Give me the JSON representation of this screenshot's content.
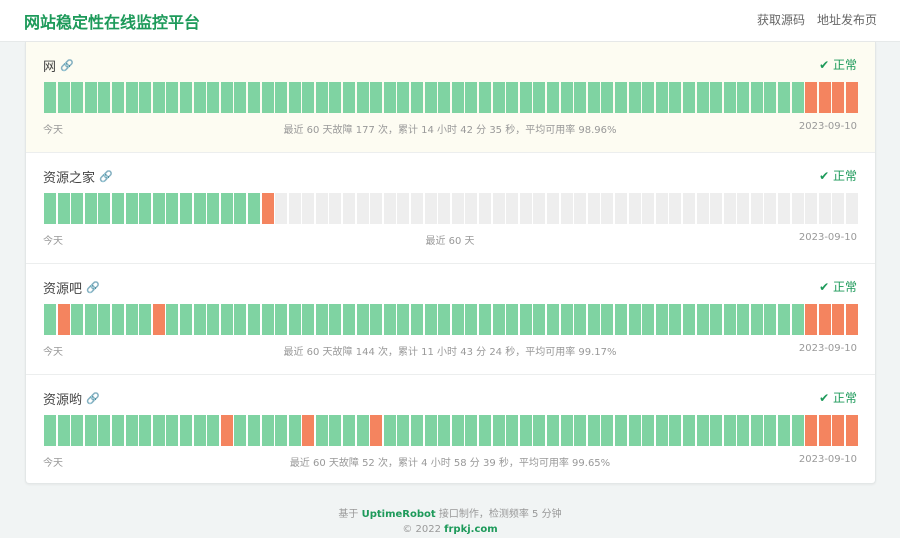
{
  "header": {
    "title": "网站稳定性在线监控平台",
    "nav": [
      "获取源码",
      "地址发布页"
    ]
  },
  "colors": {
    "up": "#7fd3a2",
    "down": "#f4845f",
    "none": "#eeeeee",
    "accent": "#1d9a5a"
  },
  "sites": [
    {
      "name": "网",
      "status": "✔ 正常",
      "today": "今天",
      "stats": "最近 60 天故障 177 次，累计 14 小时 42 分 35 秒，平均可用率 98.96%",
      "date": "2023-09-10",
      "down": [
        56,
        57,
        58,
        59
      ],
      "nodata_from": 60
    },
    {
      "name": "资源之家",
      "status": "✔ 正常",
      "today": "今天",
      "stats": "最近 60 天",
      "date": "2023-09-10",
      "down": [
        16
      ],
      "nodata_from": 17
    },
    {
      "name": "资源吧",
      "status": "✔ 正常",
      "today": "今天",
      "stats": "最近 60 天故障 144 次，累计 11 小时 43 分 24 秒，平均可用率 99.17%",
      "date": "2023-09-10",
      "down": [
        1,
        8,
        56,
        57,
        58,
        59
      ],
      "nodata_from": 60
    },
    {
      "name": "资源哟",
      "status": "✔ 正常",
      "today": "今天",
      "stats": "最近 60 天故障 52 次，累计 4 小时 58 分 39 秒，平均可用率 99.65%",
      "date": "2023-09-10",
      "down": [
        13,
        19,
        24,
        56,
        57,
        58,
        59
      ],
      "nodata_from": 60
    }
  ],
  "footer": {
    "pre": "基于 ",
    "brand": "UptimeRobot",
    "post": " 接口制作，检测频率 5 分钟",
    "copy": "© 2022 ",
    "site": "frpkj.com"
  }
}
